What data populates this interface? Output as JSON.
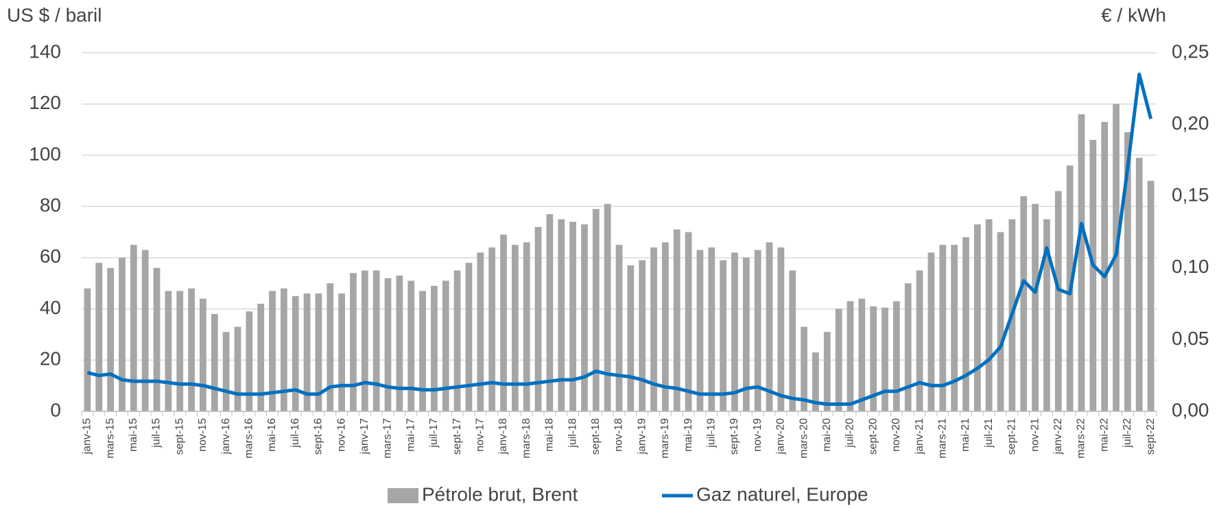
{
  "chart_data": {
    "type": "bar",
    "y_label": "US $ / baril",
    "y2_label": "€ / kWh",
    "categories": [
      "janv-15",
      null,
      "mars-15",
      null,
      "mai-15",
      null,
      "juil-15",
      null,
      "sept-15",
      null,
      "nov-15",
      null,
      "janv-16",
      null,
      "mars-16",
      null,
      "mai-16",
      null,
      "juil-16",
      null,
      "sept-16",
      null,
      "nov-16",
      null,
      "janv-17",
      null,
      "mars-17",
      null,
      "mai-17",
      null,
      "juil-17",
      null,
      "sept-17",
      null,
      "nov-17",
      null,
      "janv-18",
      null,
      "mars-18",
      null,
      "mai-18",
      null,
      "juil-18",
      null,
      "sept-18",
      null,
      "nov-18",
      null,
      "janv-19",
      null,
      "mars-19",
      null,
      "mai-19",
      null,
      "juil-19",
      null,
      "sept-19",
      null,
      "nov-19",
      null,
      "janv-20",
      null,
      "mars-20",
      null,
      "mai-20",
      null,
      "juil-20",
      null,
      "sept-20",
      null,
      "nov-20",
      null,
      "janv-21",
      null,
      "mars-21",
      null,
      "mai-21",
      null,
      "juil-21",
      null,
      "sept-21",
      null,
      "nov-21",
      null,
      "janv-22",
      null,
      "mars-22",
      null,
      "mai-22",
      null,
      "juil-22",
      null,
      "sept-22"
    ],
    "series": [
      {
        "name": "Pétrole brut, Brent",
        "type": "bar",
        "color": "#a6a6a6",
        "values": [
          48,
          58,
          56,
          60,
          65,
          63,
          56,
          47,
          47,
          48,
          44,
          38,
          31,
          33,
          39,
          42,
          47,
          48,
          45,
          46,
          46,
          50,
          46,
          54,
          55,
          55,
          52,
          53,
          51,
          47,
          49,
          51,
          55,
          58,
          62,
          64,
          69,
          65,
          66,
          72,
          77,
          75,
          74,
          73,
          79,
          81,
          65,
          57,
          59,
          64,
          66,
          71,
          70,
          63,
          64,
          59,
          62,
          60,
          63,
          66,
          64,
          55,
          33,
          23,
          31,
          40,
          43,
          44,
          41,
          40.5,
          43,
          50,
          55,
          62,
          65,
          65,
          68,
          73,
          75,
          70,
          75,
          84,
          81,
          75,
          86,
          96,
          116,
          106,
          113,
          120,
          109,
          99,
          90
        ]
      },
      {
        "name": "Gaz naturel, Europe",
        "type": "line",
        "axis": "y2",
        "color": "#0070c0",
        "values": [
          0.027,
          0.025,
          0.026,
          0.022,
          0.021,
          0.021,
          0.021,
          0.02,
          0.019,
          0.019,
          0.018,
          0.016,
          0.014,
          0.012,
          0.012,
          0.012,
          0.013,
          0.014,
          0.015,
          0.012,
          0.012,
          0.017,
          0.018,
          0.018,
          0.02,
          0.019,
          0.017,
          0.016,
          0.016,
          0.015,
          0.015,
          0.016,
          0.017,
          0.018,
          0.019,
          0.02,
          0.019,
          0.019,
          0.019,
          0.02,
          0.021,
          0.022,
          0.022,
          0.024,
          0.028,
          0.026,
          0.025,
          0.024,
          0.022,
          0.019,
          0.017,
          0.016,
          0.014,
          0.012,
          0.012,
          0.012,
          0.013,
          0.016,
          0.017,
          0.014,
          0.011,
          0.009,
          0.008,
          0.006,
          0.005,
          0.005,
          0.005,
          0.008,
          0.011,
          0.014,
          0.014,
          0.017,
          0.02,
          0.018,
          0.018,
          0.021,
          0.025,
          0.03,
          0.036,
          0.045,
          0.068,
          0.091,
          0.083,
          0.114,
          0.085,
          0.082,
          0.131,
          0.102,
          0.094,
          0.109,
          0.17,
          0.235,
          0.204
        ]
      }
    ],
    "ylim": [
      0,
      140
    ],
    "yticks": [
      0,
      20,
      40,
      60,
      80,
      100,
      120,
      140
    ],
    "y2lim": [
      0,
      0.25
    ],
    "y2ticks": [
      {
        "value": 0,
        "label": "0,00"
      },
      {
        "value": 0.05,
        "label": "0,05"
      },
      {
        "value": 0.1,
        "label": "0,10"
      },
      {
        "value": 0.15,
        "label": "0,15"
      },
      {
        "value": 0.2,
        "label": "0,20"
      },
      {
        "value": 0.25,
        "label": "0,25"
      }
    ],
    "grid": true,
    "legend": "bottom"
  }
}
